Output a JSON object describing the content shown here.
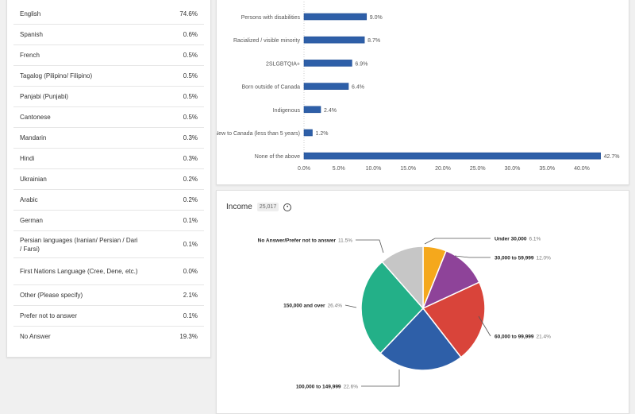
{
  "languages": [
    {
      "label": "English",
      "value": "74.6%"
    },
    {
      "label": "Spanish",
      "value": "0.6%"
    },
    {
      "label": "French",
      "value": "0.5%"
    },
    {
      "label": "Tagalog (Pilipino/ Filipino)",
      "value": "0.5%"
    },
    {
      "label": "Panjabi (Punjabi)",
      "value": "0.5%"
    },
    {
      "label": "Cantonese",
      "value": "0.5%"
    },
    {
      "label": "Mandarin",
      "value": "0.3%"
    },
    {
      "label": "Hindi",
      "value": "0.3%"
    },
    {
      "label": "Ukrainian",
      "value": "0.2%"
    },
    {
      "label": "Arabic",
      "value": "0.2%"
    },
    {
      "label": "German",
      "value": "0.1%"
    },
    {
      "label": "Persian languages (Iranian/ Persian / Dari / Farsi)",
      "value": "0.1%"
    },
    {
      "label": "First Nations Language (Cree, Dene, etc.)",
      "value": "0.0%"
    },
    {
      "label": "Other (Please specify)",
      "value": "2.1%"
    },
    {
      "label": "Prefer not to answer",
      "value": "0.1%"
    },
    {
      "label": "No Answer",
      "value": "19.3%"
    }
  ],
  "income": {
    "title": "Income",
    "count": "25,017",
    "info_icon": "clock-icon"
  },
  "chart_data": [
    {
      "type": "bar",
      "orientation": "horizontal",
      "categories": [
        "Persons with disabilities",
        "Racialized / visible minority",
        "2SLGBTQIA+",
        "Born outside of Canada",
        "Indigenous",
        "New to Canada (less than 5 years)",
        "None of the above"
      ],
      "values": [
        9.0,
        8.7,
        6.9,
        6.4,
        2.4,
        1.2,
        42.7
      ],
      "data_labels": [
        "9.0%",
        "8.7%",
        "6.9%",
        "6.4%",
        "2.4%",
        "1.2%",
        "42.7%"
      ],
      "xlim": [
        0,
        40
      ],
      "ticks": [
        "0.0%",
        "5.0%",
        "10.0%",
        "15.0%",
        "20.0%",
        "25.0%",
        "30.0%",
        "35.0%",
        "40.0%"
      ],
      "color": "#2e5fa8"
    },
    {
      "type": "pie",
      "categories": [
        "Under 30,000",
        "30,000 to 59,999",
        "60,000 to 99,999",
        "100,000 to 149,999",
        "150,000 and over",
        "No Answer/Prefer not to answer"
      ],
      "values": [
        6.1,
        12.0,
        21.4,
        22.6,
        26.4,
        11.5
      ],
      "data_labels": [
        "6.1%",
        "12.0%",
        "21.4%",
        "22.6%",
        "26.4%",
        "11.5%"
      ],
      "colors": [
        "#f5a81c",
        "#8e4399",
        "#d9443a",
        "#2e5fa8",
        "#23b088",
        "#c6c6c6"
      ]
    }
  ]
}
